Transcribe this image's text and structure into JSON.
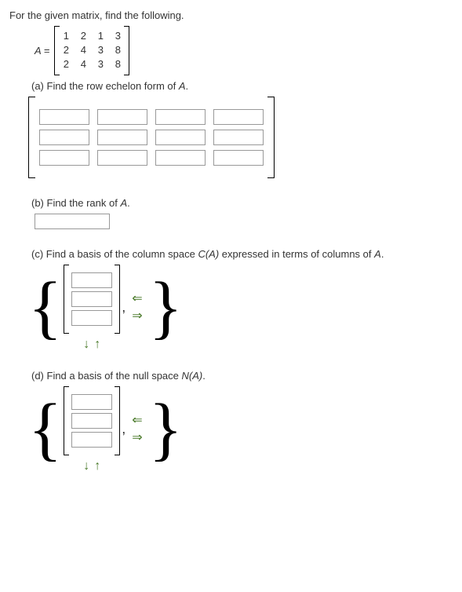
{
  "intro": "For the given matrix, find the following.",
  "A_label": "A = ",
  "matrix_A": {
    "rows": [
      [
        "1",
        "2",
        "1",
        "3"
      ],
      [
        "2",
        "4",
        "3",
        "8"
      ],
      [
        "2",
        "4",
        "3",
        "8"
      ]
    ]
  },
  "part_a_prefix": "(a) Find the row echelon form of ",
  "part_a_var": "A",
  "part_a_suffix": ".",
  "ref_input": {
    "rows": 3,
    "cols": 4
  },
  "part_b_prefix": "(b) Find the rank of ",
  "part_b_var": "A",
  "part_b_suffix": ".",
  "part_c_prefix": "(c) Find a basis of the column space ",
  "part_c_CA": "C(A)",
  "part_c_mid": " expressed in terms of columns of ",
  "part_c_var": "A",
  "part_c_suffix": ".",
  "part_d_prefix": "(d) Find a basis of the null space ",
  "part_d_NA": "N(A)",
  "part_d_suffix": ".",
  "colvec_rows": 3,
  "arrows": {
    "down": "↓",
    "up": "↑",
    "left": "⇐",
    "right": "⇒"
  },
  "comma": ",",
  "colors": {
    "arrow": "#4a7a2a",
    "input_border": "#999999",
    "text": "#333333"
  }
}
